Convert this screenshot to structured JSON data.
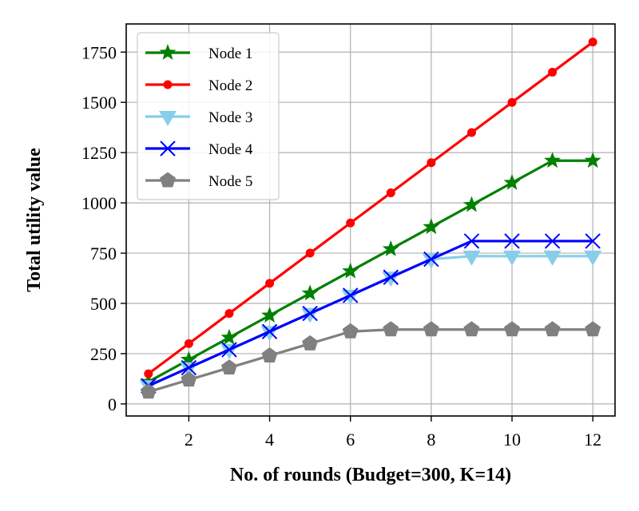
{
  "chart_data": {
    "type": "line",
    "title": "",
    "xlabel": "No. of rounds (Budget=300, K=14)",
    "ylabel": "Total utility value",
    "xlim": [
      0.45,
      12.55
    ],
    "ylim": [
      -60,
      1890
    ],
    "xticks": [
      2,
      4,
      6,
      8,
      10,
      12
    ],
    "yticks": [
      0,
      250,
      500,
      750,
      1000,
      1250,
      1500,
      1750
    ],
    "grid": true,
    "legend_position": "upper-left",
    "x": [
      1,
      2,
      3,
      4,
      5,
      6,
      7,
      8,
      9,
      10,
      11,
      12
    ],
    "series": [
      {
        "name": "Node 1",
        "color": "#008000",
        "marker": "star",
        "values": [
          110,
          220,
          330,
          440,
          550,
          660,
          770,
          880,
          990,
          1100,
          1210,
          1210
        ]
      },
      {
        "name": "Node 2",
        "color": "#ff0000",
        "marker": "circle",
        "values": [
          150,
          300,
          450,
          600,
          750,
          900,
          1050,
          1200,
          1350,
          1500,
          1650,
          1800
        ]
      },
      {
        "name": "Node 3",
        "color": "#87ceeb",
        "marker": "triangle-down",
        "values": [
          90,
          180,
          270,
          360,
          450,
          540,
          630,
          720,
          735,
          735,
          735,
          735
        ]
      },
      {
        "name": "Node 4",
        "color": "#0000ff",
        "marker": "x",
        "values": [
          90,
          180,
          270,
          360,
          450,
          540,
          630,
          720,
          810,
          810,
          810,
          810
        ]
      },
      {
        "name": "Node 5",
        "color": "#808080",
        "marker": "pentagon",
        "values": [
          60,
          120,
          180,
          240,
          300,
          360,
          370,
          370,
          370,
          370,
          370,
          370
        ]
      }
    ]
  }
}
